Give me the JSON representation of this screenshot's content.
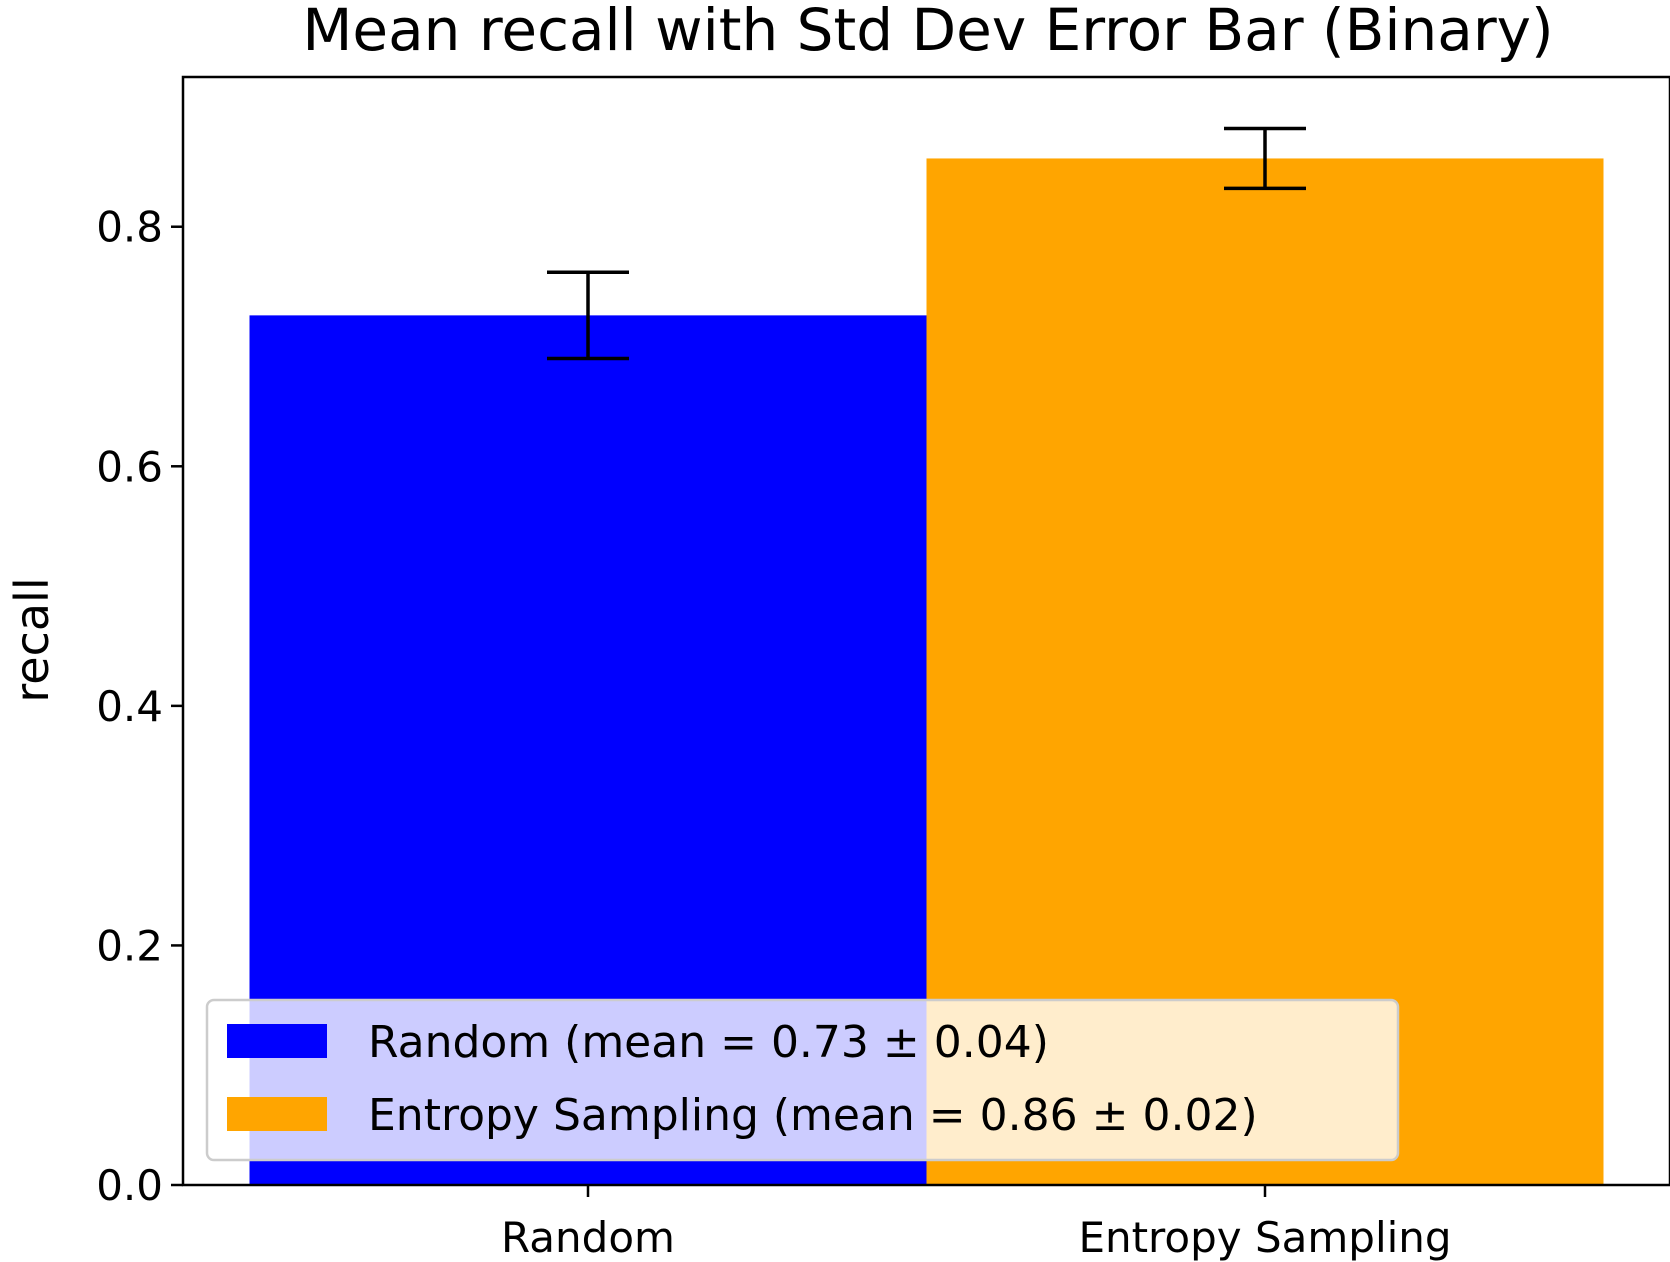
{
  "chart_data": {
    "type": "bar",
    "title": "Mean recall with Std Dev Error Bar (Binary)",
    "xlabel": "",
    "ylabel": "recall",
    "ylim": [
      0,
      0.925
    ],
    "yticks": [
      0.0,
      0.2,
      0.4,
      0.6,
      0.8
    ],
    "ytick_labels": [
      "0.0",
      "0.2",
      "0.4",
      "0.6",
      "0.8"
    ],
    "categories": [
      "Random",
      "Entropy Sampling"
    ],
    "values": [
      0.726,
      0.857
    ],
    "errors": [
      0.036,
      0.025
    ],
    "colors": [
      "#0000ff",
      "#ffa500"
    ],
    "error_color": "#000000",
    "grid": false,
    "legend": {
      "placement": "lower-left",
      "entries": [
        {
          "label": "Random (mean = 0.73 ± 0.04)",
          "color": "#0000ff"
        },
        {
          "label": "Entropy Sampling (mean = 0.86 ± 0.02)",
          "color": "#ffa500"
        }
      ]
    }
  }
}
